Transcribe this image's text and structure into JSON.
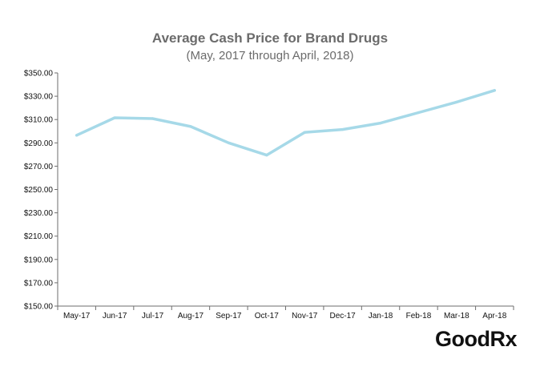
{
  "chart_data": {
    "type": "line",
    "title": "Average Cash Price for Brand Drugs",
    "subtitle": "(May, 2017 through April, 2018)",
    "xlabel": "",
    "ylabel": "",
    "categories": [
      "May-17",
      "Jun-17",
      "Jul-17",
      "Aug-17",
      "Sep-17",
      "Oct-17",
      "Nov-17",
      "Dec-17",
      "Jan-18",
      "Feb-18",
      "Mar-18",
      "Apr-18"
    ],
    "series": [
      {
        "name": "Average Cash Price",
        "values": [
          296.5,
          311.5,
          310.8,
          304.0,
          290.0,
          279.5,
          299.0,
          301.5,
          307.0,
          316.0,
          325.0,
          335.0
        ],
        "color": "#a6d9e8"
      }
    ],
    "ylim": [
      150,
      350
    ],
    "yticks": [
      150,
      170,
      190,
      210,
      230,
      250,
      270,
      290,
      310,
      330,
      350
    ],
    "ytick_labels": [
      "$150.00",
      "$170.00",
      "$190.00",
      "$210.00",
      "$230.00",
      "$250.00",
      "$270.00",
      "$290.00",
      "$310.00",
      "$330.00",
      "$350.00"
    ],
    "grid": false,
    "legend": "none",
    "axis_color": "#6e6e6e"
  },
  "brand": {
    "logo_text": "GoodRx"
  }
}
